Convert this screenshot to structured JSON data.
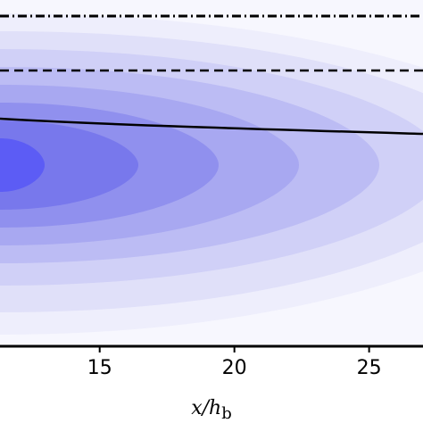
{
  "chart_data": {
    "type": "contour",
    "xlabel": "x/h",
    "xlabel_sub": "b",
    "xlim": [
      11.3,
      27.0
    ],
    "xticks": [
      15,
      20,
      25
    ]
  }
}
